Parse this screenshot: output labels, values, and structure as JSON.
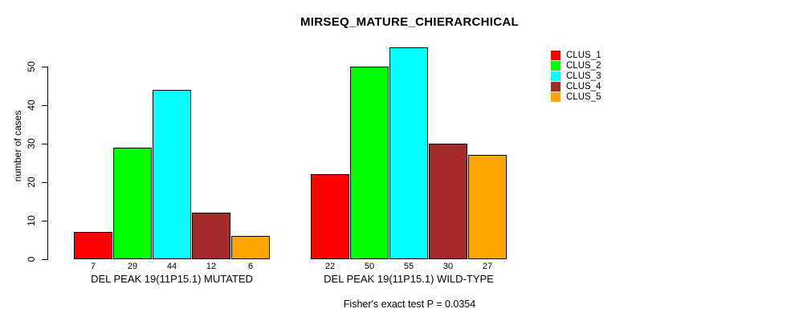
{
  "chart_data": {
    "type": "bar",
    "title": "MIRSEQ_MATURE_CHIERARCHICAL",
    "ylabel": "number of cases",
    "xlabel": "",
    "ylim": [
      0,
      55
    ],
    "yticks": [
      0,
      10,
      20,
      30,
      40,
      50
    ],
    "grid": false,
    "legend_position": "top-right",
    "categories": [
      "DEL PEAK 19(11P15.1) MUTATED",
      "DEL PEAK 19(11P15.1) WILD-TYPE"
    ],
    "series": [
      {
        "name": "CLUS_1",
        "color": "#ff0000",
        "values": [
          7,
          22
        ]
      },
      {
        "name": "CLUS_2",
        "color": "#00ff00",
        "values": [
          29,
          50
        ]
      },
      {
        "name": "CLUS_3",
        "color": "#00ffff",
        "values": [
          44,
          55
        ]
      },
      {
        "name": "CLUS_4",
        "color": "#a52a2a",
        "values": [
          12,
          30
        ]
      },
      {
        "name": "CLUS_5",
        "color": "#ffa500",
        "values": [
          6,
          27
        ]
      }
    ],
    "groups": [
      {
        "label": "DEL PEAK 19(11P15.1) MUTATED",
        "values": [
          7,
          29,
          44,
          12,
          6
        ]
      },
      {
        "label": "DEL PEAK 19(11P15.1) WILD-TYPE",
        "values": [
          22,
          50,
          55,
          30,
          27
        ]
      }
    ],
    "bar_labels_shown": true,
    "annotation": "Fisher's exact test P = 0.0354",
    "axis_color": "#000000",
    "background_color": "#ffffff"
  }
}
